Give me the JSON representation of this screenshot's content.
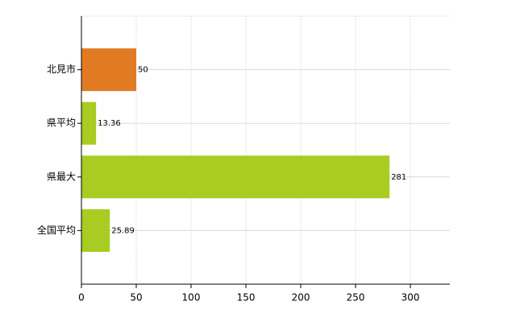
{
  "chart_data": {
    "type": "hbar",
    "categories": [
      "北見市",
      "県平均",
      "県最大",
      "全国平均"
    ],
    "values": [
      50,
      13.36,
      281,
      25.89
    ],
    "colors": [
      "#e07b24",
      "#a8cc22",
      "#a8cc22",
      "#a8cc22"
    ],
    "xlim": [
      0,
      336
    ],
    "xticks": [
      0,
      50,
      100,
      150,
      200,
      250,
      300
    ],
    "grid": true
  }
}
